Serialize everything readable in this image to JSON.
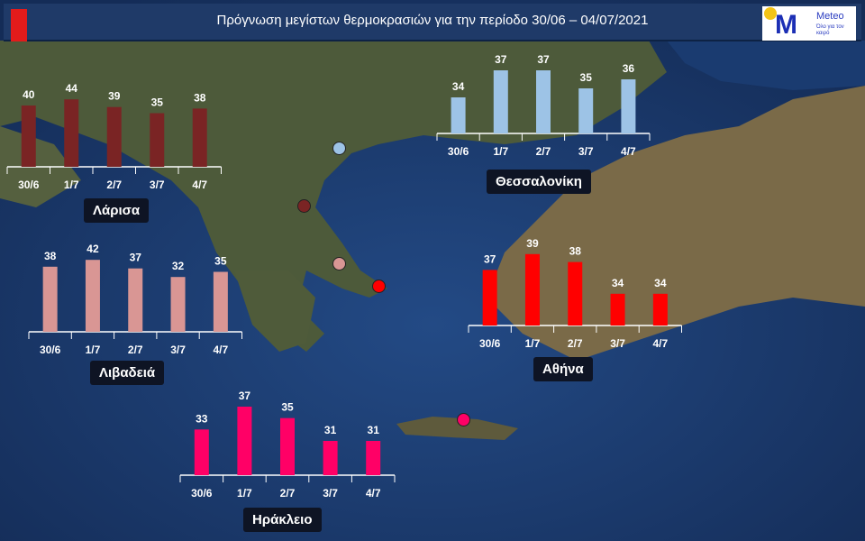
{
  "header": {
    "title": "Πρόγνωση μεγίστων θερμοκρασιών για την περίοδο 30/06 – 04/07/2021",
    "icon": "thermometer-icon"
  },
  "logo": {
    "name": "Meteo",
    "tagline": "Όλο για τον καιρό",
    "accent": "#1c2fb5",
    "sun": "#f3c417"
  },
  "chart_data": [
    {
      "type": "bar",
      "name": "Λάρισα",
      "color": "#7a2424",
      "categories": [
        "30/6",
        "1/7",
        "2/7",
        "3/7",
        "4/7"
      ],
      "values": [
        40,
        44,
        39,
        35,
        38
      ],
      "ylim": [
        0,
        50
      ]
    },
    {
      "type": "bar",
      "name": "Θεσσαλονίκη",
      "color": "#9dc3e6",
      "categories": [
        "30/6",
        "1/7",
        "2/7",
        "3/7",
        "4/7"
      ],
      "values": [
        34,
        37,
        37,
        35,
        36
      ],
      "ylim": [
        30,
        40
      ]
    },
    {
      "type": "bar",
      "name": "Λιβαδειά",
      "color": "#d99694",
      "categories": [
        "30/6",
        "1/7",
        "2/7",
        "3/7",
        "4/7"
      ],
      "values": [
        38,
        42,
        37,
        32,
        35
      ],
      "ylim": [
        0,
        50
      ]
    },
    {
      "type": "bar",
      "name": "Αθήνα",
      "color": "#ff0000",
      "categories": [
        "30/6",
        "1/7",
        "2/7",
        "3/7",
        "4/7"
      ],
      "values": [
        37,
        39,
        38,
        34,
        34
      ],
      "ylim": [
        30,
        40
      ]
    },
    {
      "type": "bar",
      "name": "Ηράκλειο",
      "color": "#ff0066",
      "categories": [
        "30/6",
        "1/7",
        "2/7",
        "3/7",
        "4/7"
      ],
      "values": [
        33,
        37,
        35,
        31,
        31
      ],
      "ylim": [
        25,
        40
      ]
    }
  ]
}
